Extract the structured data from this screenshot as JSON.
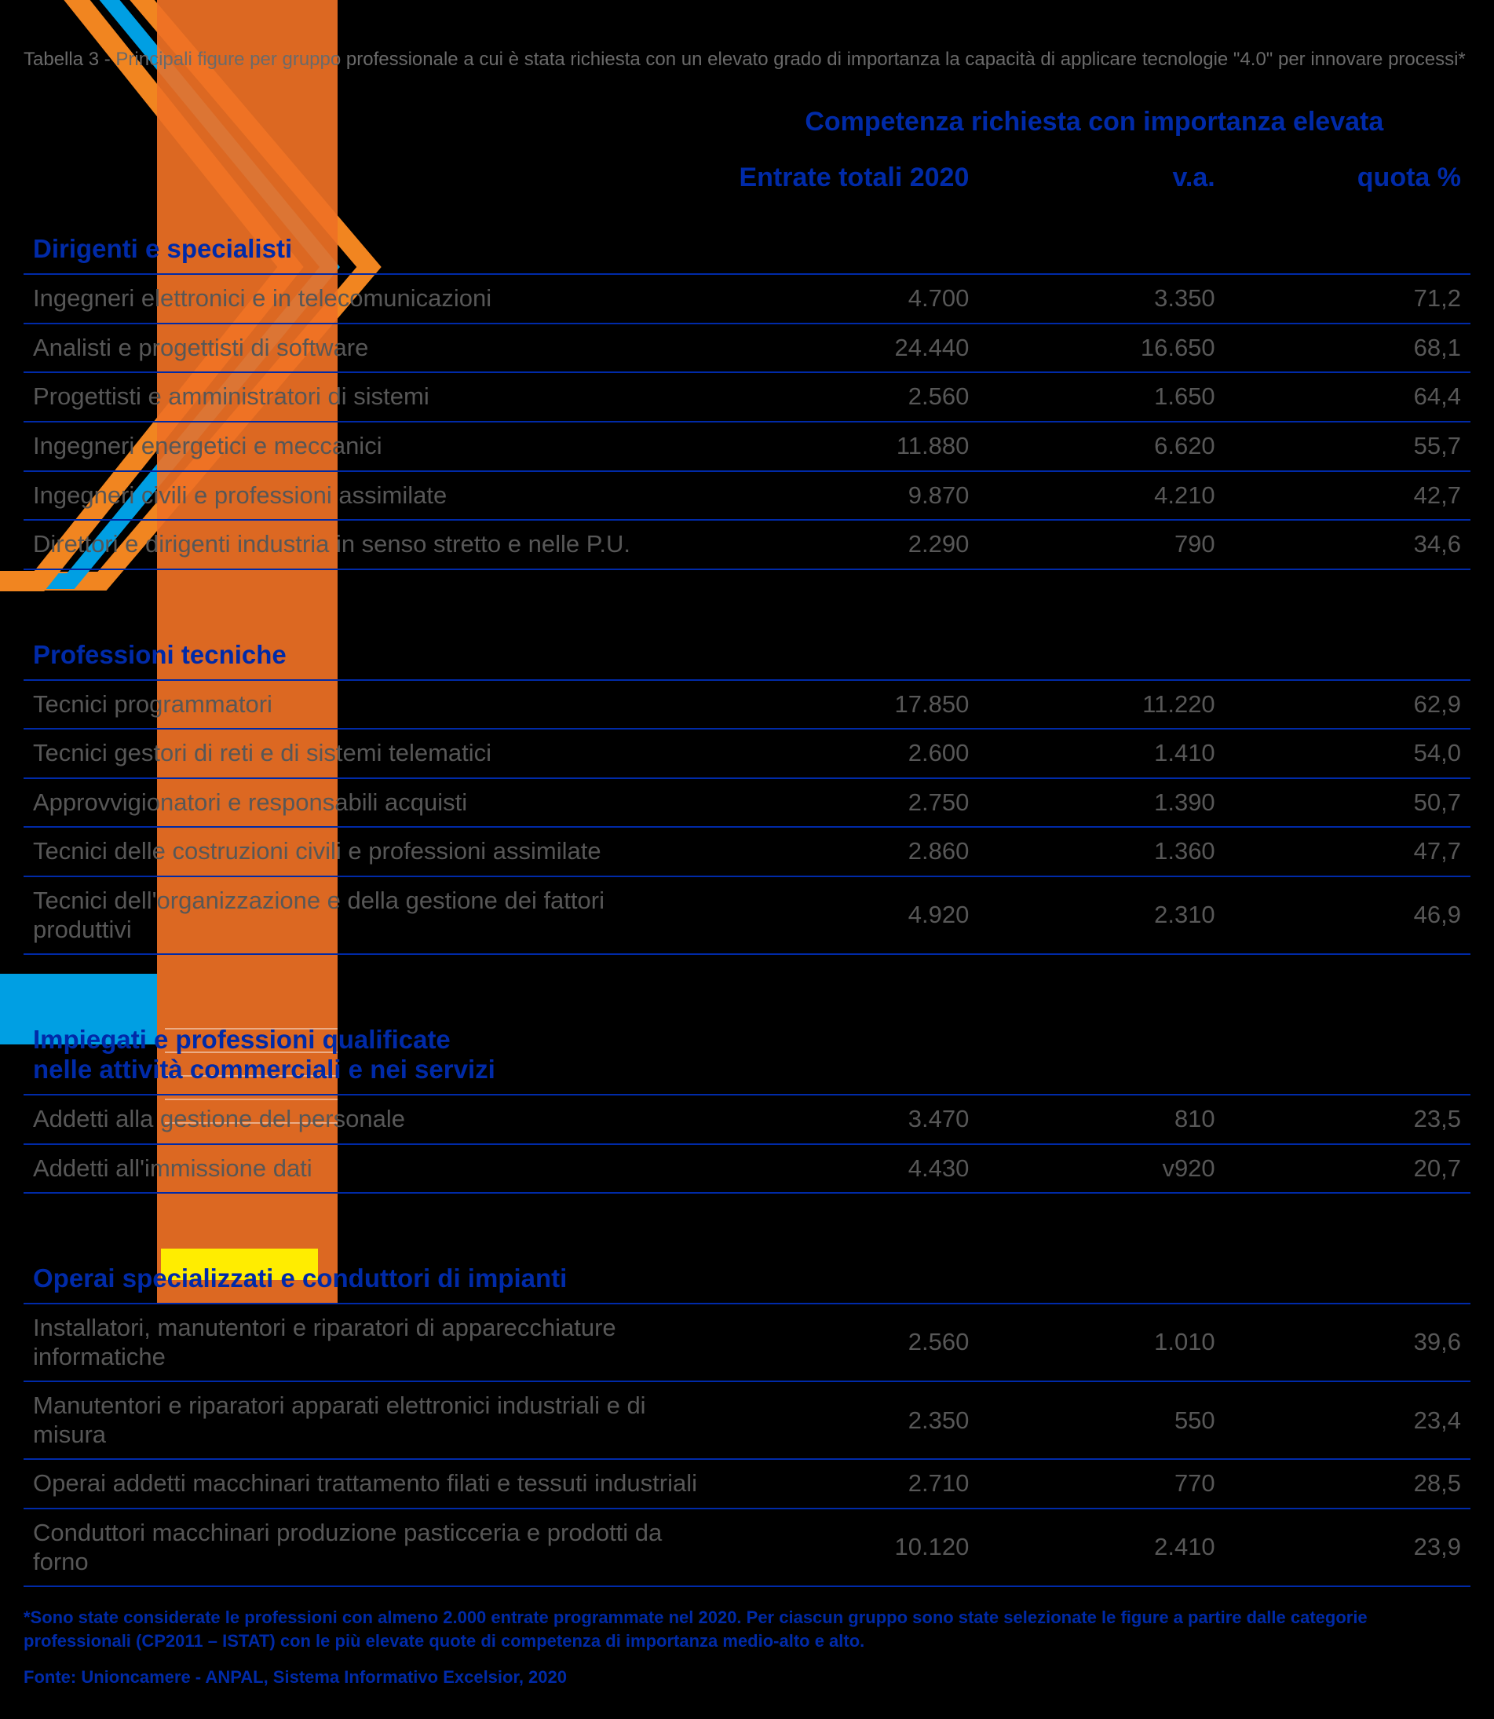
{
  "colors": {
    "background": "#000000",
    "accent_blue": "#002aa8",
    "text_grey": "#575757",
    "caption_grey": "#6a6a6a",
    "decor_cyan": "#009fe3",
    "decor_orange": "#f18520",
    "decor_orange2": "#ef7125",
    "decor_yellow": "#ffed00",
    "row_border": "#002aa8"
  },
  "typography": {
    "caption_fontsize": 24,
    "header_fontsize": 34,
    "group_fontsize": 33,
    "row_fontsize": 31,
    "foot_fontsize": 22
  },
  "caption": "Tabella 3 - Principali figure per gruppo professionale a cui è stata richiesta con un elevato grado di importanza la capacità di applicare tecnologie \"4.0\" per innovare processi*",
  "super_header": "Competenza richiesta con importanza elevata",
  "columns": {
    "c1": "Entrate totali 2020",
    "c2": "v.a.",
    "c3": "quota %"
  },
  "groups": [
    {
      "title": "Dirigenti e specialisti",
      "rows": [
        {
          "name": "Ingegneri elettronici e in telecomunicazioni",
          "tot": "4.700",
          "va": "3.350",
          "pct": "71,2"
        },
        {
          "name": "Analisti e progettisti di software",
          "tot": "24.440",
          "va": "16.650",
          "pct": "68,1"
        },
        {
          "name": "Progettisti e amministratori di sistemi",
          "tot": "2.560",
          "va": "1.650",
          "pct": "64,4"
        },
        {
          "name": "Ingegneri energetici e meccanici",
          "tot": "11.880",
          "va": "6.620",
          "pct": "55,7"
        },
        {
          "name": "Ingegneri civili e professioni assimilate",
          "tot": "9.870",
          "va": "4.210",
          "pct": "42,7"
        },
        {
          "name": "Direttori e dirigenti industria in senso stretto e nelle P.U.",
          "tot": "2.290",
          "va": "790",
          "pct": "34,6"
        }
      ]
    },
    {
      "title": "Professioni tecniche",
      "rows": [
        {
          "name": "Tecnici programmatori",
          "tot": "17.850",
          "va": "11.220",
          "pct": "62,9"
        },
        {
          "name": "Tecnici gestori di reti e di sistemi telematici",
          "tot": "2.600",
          "va": "1.410",
          "pct": "54,0"
        },
        {
          "name": "Approvvigionatori e responsabili acquisti",
          "tot": "2.750",
          "va": "1.390",
          "pct": "50,7"
        },
        {
          "name": "Tecnici delle costruzioni civili e professioni assimilate",
          "tot": "2.860",
          "va": "1.360",
          "pct": "47,7"
        },
        {
          "name": "Tecnici dell'organizzazione e della gestione dei fattori produttivi",
          "tot": "4.920",
          "va": "2.310",
          "pct": "46,9"
        }
      ]
    },
    {
      "title": "Impiegati e professioni qualificate\nnelle attività commerciali e nei servizi",
      "rows": [
        {
          "name": "Addetti alla gestione del personale",
          "tot": "3.470",
          "va": "810",
          "pct": "23,5"
        },
        {
          "name": "Addetti all'immissione dati",
          "tot": "4.430",
          "va": "v920",
          "pct": "20,7"
        }
      ]
    },
    {
      "title": "Operai specializzati e conduttori di impianti",
      "rows": [
        {
          "name": "Installatori, manutentori e riparatori di apparecchiature informatiche",
          "tot": "2.560",
          "va": "1.010",
          "pct": "39,6"
        },
        {
          "name": "Manutentori e riparatori apparati elettronici industriali e di misura",
          "tot": "2.350",
          "va": "550",
          "pct": "23,4"
        },
        {
          "name": "Operai addetti macchinari trattamento filati e tessuti industriali",
          "tot": "2.710",
          "va": "770",
          "pct": "28,5"
        },
        {
          "name": "Conduttori macchinari produzione pasticceria e prodotti da forno",
          "tot": "10.120",
          "va": "2.410",
          "pct": "23,9"
        }
      ]
    }
  ],
  "footnote": "*Sono state considerate le professioni con almeno 2.000 entrate programmate nel 2020. Per ciascun gruppo sono state selezionate le figure a partire dalle categorie professionali (CP2011 – ISTAT) con le più elevate quote di competenza di importanza medio-alto e alto.",
  "source": "Fonte: Unioncamere - ANPAL, Sistema Informativo Excelsior, 2020"
}
